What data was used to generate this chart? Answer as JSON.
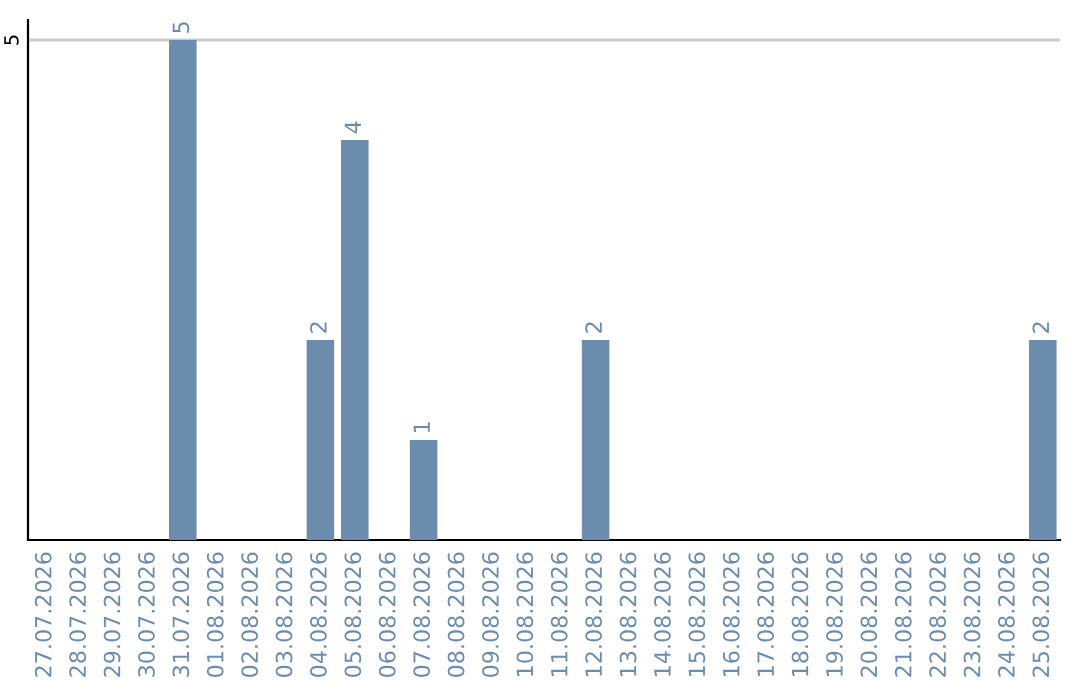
{
  "chart_data": {
    "type": "bar",
    "categories": [
      "27.07.2026",
      "28.07.2026",
      "29.07.2026",
      "30.07.2026",
      "31.07.2026",
      "01.08.2026",
      "02.08.2026",
      "03.08.2026",
      "04.08.2026",
      "05.08.2026",
      "06.08.2026",
      "07.08.2026",
      "08.08.2026",
      "09.08.2026",
      "10.08.2026",
      "11.08.2026",
      "12.08.2026",
      "13.08.2026",
      "14.08.2026",
      "15.08.2026",
      "16.08.2026",
      "17.08.2026",
      "18.08.2026",
      "19.08.2026",
      "20.08.2026",
      "21.08.2026",
      "22.08.2026",
      "23.08.2026",
      "24.08.2026",
      "25.08.2026"
    ],
    "values": [
      0,
      0,
      0,
      0,
      5,
      0,
      0,
      0,
      2,
      4,
      0,
      1,
      0,
      0,
      0,
      0,
      2,
      0,
      0,
      0,
      0,
      0,
      0,
      0,
      0,
      0,
      0,
      0,
      0,
      2
    ],
    "value_labels": [
      null,
      null,
      null,
      null,
      "5",
      null,
      null,
      null,
      "2",
      "4",
      null,
      "1",
      null,
      null,
      null,
      null,
      "2",
      null,
      null,
      null,
      null,
      null,
      null,
      null,
      null,
      null,
      null,
      null,
      null,
      "2"
    ],
    "color": "#6b8cac",
    "ylim": [
      0,
      5.2
    ],
    "yticks": [
      5
    ],
    "grid": "y"
  }
}
